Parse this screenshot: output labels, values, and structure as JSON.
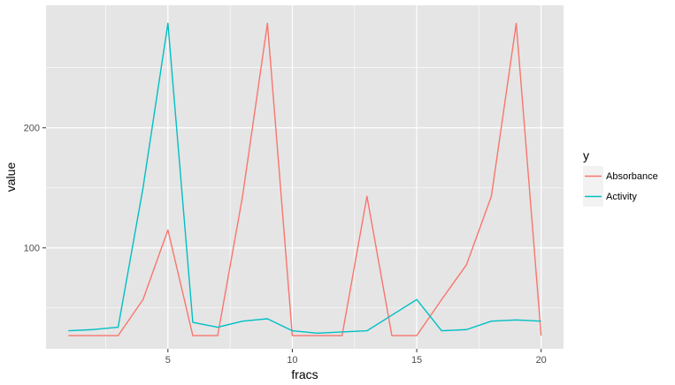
{
  "chart_data": {
    "type": "line",
    "xlabel": "fracs",
    "ylabel": "value",
    "x": [
      1,
      2,
      3,
      4,
      5,
      6,
      7,
      8,
      9,
      10,
      11,
      12,
      13,
      14,
      15,
      16,
      17,
      18,
      19,
      20
    ],
    "xlim": [
      0.1,
      20.9
    ],
    "ylim": [
      16,
      302
    ],
    "xticks": [
      5,
      10,
      15,
      20
    ],
    "yticks": [
      100,
      200
    ],
    "xticks_minor": [
      2.5,
      7.5,
      12.5,
      17.5
    ],
    "yticks_minor": [
      50,
      150,
      250
    ],
    "grid": true,
    "panel_background": "#E5E5E5",
    "grid_color": "#FFFFFF",
    "legend": {
      "title": "y",
      "placement": "right",
      "entries": [
        "Absorbance",
        "Activity"
      ]
    },
    "series": [
      {
        "name": "Absorbance",
        "color": "#F8766D",
        "values": [
          27,
          27,
          27,
          57,
          115,
          27,
          27,
          143,
          287,
          27,
          27,
          27,
          143,
          27,
          27,
          57,
          86,
          143,
          287,
          27
        ]
      },
      {
        "name": "Activity",
        "color": "#00BFC4",
        "values": [
          31,
          32,
          34,
          150,
          287,
          38,
          34,
          39,
          41,
          31,
          29,
          30,
          31,
          44,
          57,
          31,
          32,
          39,
          40,
          39
        ]
      }
    ]
  }
}
